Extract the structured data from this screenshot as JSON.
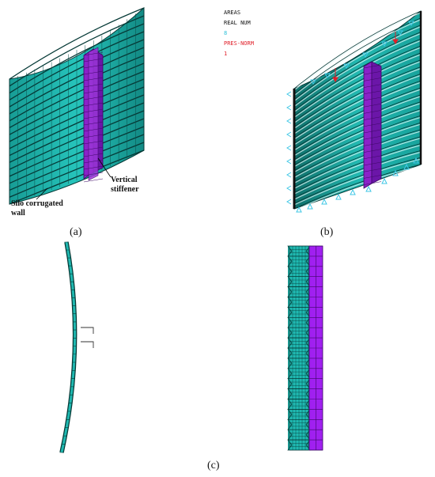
{
  "colors": {
    "wall": "#1fb8b0",
    "wall_dark": "#0d5f5a",
    "mesh": "#063a37",
    "stiffener": "#8a22c8",
    "stiffener_dark": "#5a0f88",
    "load": "#e0202a",
    "support": "#3fc7e6",
    "text": "#111111",
    "legend_value": "#2fc0d8"
  },
  "legend": {
    "line1": "AREAS",
    "line2": "REAL NUM",
    "value1": "8",
    "line3": "PRES-NORM",
    "value2": "1"
  },
  "labels": {
    "wall_line1": "Silo corrugated",
    "wall_line2": "wall",
    "stiffener_line1": "Vertical",
    "stiffener_line2": "stiffener"
  },
  "captions": {
    "a": "(a)",
    "b": "(b)",
    "c": "(c)"
  }
}
